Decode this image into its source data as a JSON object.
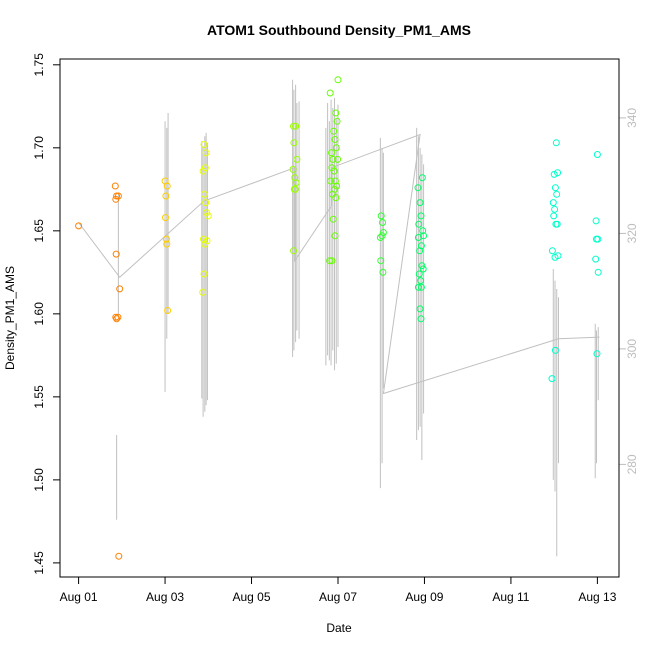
{
  "chart_data": {
    "type": "scatter",
    "title": "ATOM1 Southbound Density_PM1_AMS",
    "xlabel": "Date",
    "ylabel": "Density_PM1_AMS",
    "x_ticks": [
      "Aug 01",
      "Aug 03",
      "Aug 05",
      "Aug 07",
      "Aug 09",
      "Aug 11",
      "Aug 13"
    ],
    "x_tick_days": [
      1,
      3,
      5,
      7,
      9,
      11,
      13
    ],
    "xlim_days": [
      0.57,
      13.5
    ],
    "ylim": [
      1.4415,
      1.7535
    ],
    "y_ticks": [
      1.45,
      1.5,
      1.55,
      1.6,
      1.65,
      1.7,
      1.75
    ],
    "right_axis_ticks": [
      280,
      300,
      320,
      340
    ],
    "right_axis_lim": [
      260.5,
      350.2
    ],
    "line_color": "#c0c0c0",
    "grid": false,
    "legend": "none",
    "series": [
      {
        "color": "#ff8000",
        "points": [
          [
            1.0,
            1.653
          ],
          [
            1.85,
            1.677
          ],
          [
            1.86,
            1.669
          ],
          [
            1.88,
            1.671
          ],
          [
            1.92,
            1.671
          ],
          [
            1.87,
            1.636
          ],
          [
            1.86,
            1.598
          ],
          [
            1.88,
            1.597
          ],
          [
            1.91,
            1.598
          ],
          [
            1.95,
            1.615
          ],
          [
            1.93,
            1.454
          ]
        ]
      },
      {
        "color": "#ffcc00",
        "points": [
          [
            3.0,
            1.68
          ],
          [
            3.02,
            1.671
          ],
          [
            3.05,
            1.677
          ],
          [
            3.01,
            1.658
          ],
          [
            3.03,
            1.645
          ],
          [
            3.04,
            1.642
          ],
          [
            3.06,
            1.602
          ]
        ]
      },
      {
        "color": "#e6ff00",
        "points": [
          [
            3.9,
            1.702
          ],
          [
            3.95,
            1.697
          ],
          [
            3.88,
            1.686
          ],
          [
            3.93,
            1.688
          ],
          [
            3.91,
            1.672
          ],
          [
            3.94,
            1.667
          ],
          [
            3.96,
            1.661
          ],
          [
            4.0,
            1.659
          ],
          [
            3.89,
            1.645
          ],
          [
            3.92,
            1.642
          ],
          [
            3.97,
            1.644
          ],
          [
            3.9,
            1.624
          ],
          [
            3.87,
            1.613
          ]
        ]
      },
      {
        "color": "#99ff00",
        "points": [
          [
            5.97,
            1.713
          ],
          [
            6.02,
            1.713
          ],
          [
            5.98,
            1.703
          ],
          [
            6.05,
            1.693
          ],
          [
            5.96,
            1.687
          ],
          [
            6.0,
            1.682
          ],
          [
            6.03,
            1.679
          ],
          [
            5.99,
            1.675
          ],
          [
            6.01,
            1.675
          ],
          [
            5.97,
            1.638
          ]
        ]
      },
      {
        "color": "#66ff00",
        "points": [
          [
            7.0,
            1.741
          ],
          [
            6.82,
            1.733
          ],
          [
            6.95,
            1.721
          ],
          [
            6.98,
            1.716
          ],
          [
            6.9,
            1.71
          ],
          [
            6.93,
            1.705
          ],
          [
            6.96,
            1.7
          ],
          [
            6.85,
            1.697
          ],
          [
            6.88,
            1.693
          ],
          [
            6.99,
            1.693
          ],
          [
            6.86,
            1.688
          ],
          [
            6.91,
            1.686
          ],
          [
            6.83,
            1.68
          ],
          [
            6.94,
            1.68
          ],
          [
            6.97,
            1.677
          ],
          [
            6.92,
            1.675
          ],
          [
            6.87,
            1.672
          ],
          [
            6.95,
            1.67
          ],
          [
            6.89,
            1.657
          ],
          [
            6.93,
            1.647
          ],
          [
            6.81,
            1.632
          ],
          [
            6.86,
            1.632
          ]
        ]
      },
      {
        "color": "#33ff33",
        "points": [
          [
            8.0,
            1.659
          ],
          [
            8.03,
            1.655
          ],
          [
            8.05,
            1.649
          ],
          [
            7.98,
            1.646
          ],
          [
            8.02,
            1.647
          ],
          [
            7.99,
            1.632
          ],
          [
            8.04,
            1.625
          ]
        ]
      },
      {
        "color": "#00ff66",
        "points": [
          [
            8.95,
            1.682
          ],
          [
            8.85,
            1.676
          ],
          [
            8.9,
            1.667
          ],
          [
            8.92,
            1.659
          ],
          [
            8.87,
            1.654
          ],
          [
            8.96,
            1.65
          ],
          [
            8.98,
            1.647
          ],
          [
            8.86,
            1.646
          ],
          [
            8.93,
            1.641
          ],
          [
            8.89,
            1.638
          ],
          [
            8.94,
            1.629
          ],
          [
            8.97,
            1.627
          ],
          [
            8.88,
            1.624
          ],
          [
            8.91,
            1.62
          ],
          [
            8.86,
            1.616
          ],
          [
            8.93,
            1.616
          ],
          [
            8.9,
            1.603
          ],
          [
            8.92,
            1.597
          ]
        ]
      },
      {
        "color": "#00ffcc",
        "points": [
          [
            12.05,
            1.703
          ],
          [
            12.0,
            1.684
          ],
          [
            12.08,
            1.685
          ],
          [
            12.03,
            1.676
          ],
          [
            12.06,
            1.672
          ],
          [
            11.98,
            1.667
          ],
          [
            12.01,
            1.663
          ],
          [
            12.04,
            1.654
          ],
          [
            12.07,
            1.654
          ],
          [
            11.99,
            1.659
          ],
          [
            11.96,
            1.638
          ],
          [
            12.02,
            1.634
          ],
          [
            12.09,
            1.635
          ],
          [
            12.03,
            1.578
          ],
          [
            11.95,
            1.561
          ],
          [
            13.0,
            1.696
          ],
          [
            12.97,
            1.656
          ],
          [
            12.98,
            1.645
          ],
          [
            13.01,
            1.645
          ],
          [
            12.96,
            1.633
          ],
          [
            13.02,
            1.625
          ],
          [
            12.99,
            1.576
          ]
        ]
      }
    ],
    "trace": {
      "path": [
        [
          1.0,
          1.655
        ],
        [
          1.95,
          1.622
        ],
        [
          3.9,
          1.668
        ],
        [
          6.0,
          1.688
        ],
        [
          6.0,
          1.632
        ],
        [
          6.85,
          1.665
        ],
        [
          6.85,
          1.688
        ],
        [
          8.9,
          1.708
        ],
        [
          8.05,
          1.552
        ],
        [
          12.1,
          1.585
        ],
        [
          13.05,
          1.586
        ]
      ],
      "spikes": [
        [
          1.88,
          1.527,
          1.476
        ],
        [
          1.92,
          1.672,
          1.6
        ],
        [
          3.0,
          1.716,
          1.553
        ],
        [
          3.04,
          1.712,
          1.585
        ],
        [
          3.07,
          1.721,
          1.6
        ],
        [
          3.85,
          1.704,
          1.549
        ],
        [
          3.88,
          1.701,
          1.538
        ],
        [
          3.92,
          1.707,
          1.541
        ],
        [
          3.95,
          1.709,
          1.545
        ],
        [
          3.98,
          1.703,
          1.548
        ],
        [
          5.95,
          1.741,
          1.574
        ],
        [
          5.98,
          1.735,
          1.578
        ],
        [
          6.02,
          1.738,
          1.583
        ],
        [
          6.05,
          1.727,
          1.59
        ],
        [
          6.1,
          1.728,
          1.585
        ],
        [
          6.72,
          1.712,
          1.569
        ],
        [
          6.76,
          1.727,
          1.575
        ],
        [
          6.8,
          1.716,
          1.572
        ],
        [
          6.84,
          1.729,
          1.569
        ],
        [
          6.88,
          1.724,
          1.578
        ],
        [
          6.92,
          1.73,
          1.566
        ],
        [
          6.96,
          1.718,
          1.57
        ],
        [
          7.0,
          1.726,
          1.58
        ],
        [
          7.98,
          1.706,
          1.495
        ],
        [
          8.02,
          1.7,
          1.51
        ],
        [
          8.05,
          1.697,
          1.555
        ],
        [
          8.82,
          1.712,
          1.524
        ],
        [
          8.86,
          1.707,
          1.53
        ],
        [
          8.9,
          1.7,
          1.532
        ],
        [
          8.94,
          1.696,
          1.512
        ],
        [
          8.98,
          1.69,
          1.54
        ],
        [
          11.98,
          1.627,
          1.5
        ],
        [
          12.02,
          1.62,
          1.493
        ],
        [
          12.06,
          1.615,
          1.454
        ],
        [
          12.1,
          1.61,
          1.51
        ],
        [
          12.95,
          1.594,
          1.501
        ],
        [
          12.98,
          1.59,
          1.51
        ],
        [
          13.02,
          1.592,
          1.548
        ]
      ]
    }
  }
}
